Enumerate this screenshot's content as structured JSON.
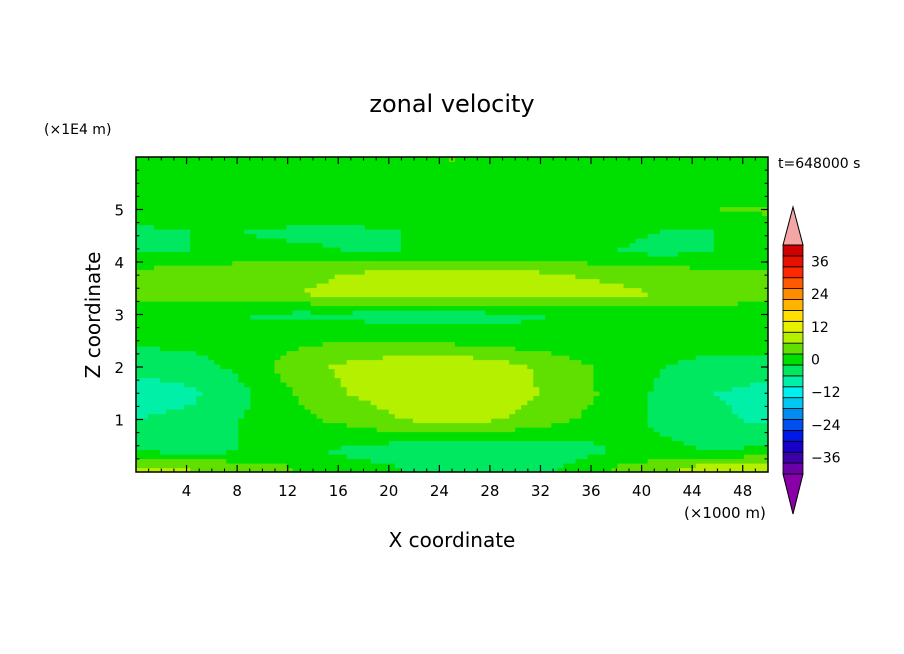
{
  "chart_data": {
    "type": "heatmap",
    "title": "zonal velocity",
    "xlabel": "X coordinate",
    "ylabel": "Z coordinate",
    "x_unit": "(×1000 m)",
    "y_unit": "(×1E4 m)",
    "time_label": "t=648000 s",
    "xlim": [
      0,
      50
    ],
    "ylim": [
      0,
      6
    ],
    "x_ticks": [
      4,
      8,
      12,
      16,
      20,
      24,
      28,
      32,
      36,
      40,
      44,
      48
    ],
    "y_ticks": [
      1,
      2,
      3,
      4,
      5
    ],
    "colorbar": {
      "range": [
        -42,
        42
      ],
      "step": 4,
      "tick_labels": [
        36,
        24,
        12,
        0,
        -12,
        -24,
        -36
      ],
      "colors": [
        "#6a00a8",
        "#3c00a8",
        "#1800c8",
        "#0018e8",
        "#0050f0",
        "#008cf0",
        "#00c8f0",
        "#00f0f0",
        "#00f0a8",
        "#00e860",
        "#00e000",
        "#60e000",
        "#b4f000",
        "#e6f000",
        "#ffe000",
        "#ffb400",
        "#ff8c00",
        "#ff5a00",
        "#ff2800",
        "#e81000",
        "#d00000"
      ],
      "low_extend_color": "#8a00a8",
      "high_extend_color": "#f4a6a6"
    },
    "z_levels": [
      {
        "z": 0.1,
        "u": [
          6,
          6,
          4,
          2,
          0,
          -2,
          -3,
          -3,
          -2,
          2,
          5,
          8,
          10
        ],
        "from_x": 0
      },
      {
        "z": 0.4,
        "u": [
          -2,
          -3,
          -2,
          0,
          -3,
          -5,
          -6,
          -6,
          -5,
          -2,
          -1,
          -2,
          -1
        ],
        "from_x": 0
      },
      {
        "z": 1.0,
        "u": [
          -6,
          -5,
          -2,
          1,
          3,
          6,
          7,
          6,
          3,
          0,
          -3,
          -5,
          -7
        ],
        "from_x": 0
      },
      {
        "z": 1.5,
        "u": [
          -8,
          -7,
          -3,
          2,
          6,
          8,
          9,
          8,
          5,
          1,
          -3,
          -6,
          -8
        ],
        "from_x": 0
      },
      {
        "z": 2.0,
        "u": [
          -5,
          -4,
          -1,
          4,
          7,
          9,
          10,
          8,
          4,
          1,
          -2,
          -3,
          -4
        ],
        "from_x": 0
      },
      {
        "z": 2.5,
        "u": [
          -1,
          -1,
          0,
          1,
          2,
          2,
          1,
          0,
          0,
          0,
          -1,
          -1,
          0
        ],
        "from_x": 0
      },
      {
        "z": 3.0,
        "u": [
          -1,
          -2,
          -2,
          -3,
          -3,
          -4,
          -4,
          -3,
          -2,
          -2,
          -1,
          -1,
          -2
        ],
        "from_x": 0
      },
      {
        "z": 3.4,
        "u": [
          4,
          5,
          5,
          6,
          7,
          8,
          9,
          9,
          8,
          7,
          6,
          5,
          5
        ],
        "from_x": 0
      },
      {
        "z": 3.8,
        "u": [
          3,
          4,
          5,
          5,
          6,
          7,
          8,
          7,
          6,
          5,
          4,
          3,
          3
        ],
        "from_x": 0
      },
      {
        "z": 4.2,
        "u": [
          -2,
          -2,
          -1,
          -1,
          -2,
          -2,
          -1,
          -1,
          -2,
          -2,
          -3,
          -2,
          -2
        ],
        "from_x": 0
      },
      {
        "z": 4.6,
        "u": [
          -3,
          -2,
          -2,
          -3,
          -3,
          -2,
          -2,
          -1,
          0,
          -1,
          -2,
          -2,
          -2
        ],
        "from_x": 0
      },
      {
        "z": 5.0,
        "u": [
          1,
          1,
          2,
          2,
          1,
          1,
          0,
          -1,
          -1,
          0,
          1,
          2,
          3
        ],
        "from_x": 0
      },
      {
        "z": 5.4,
        "u": [
          -2,
          -2,
          -1,
          0,
          1,
          2,
          1,
          0,
          1,
          2,
          1,
          0,
          -1
        ],
        "from_x": 0
      },
      {
        "z": 5.9,
        "u": [
          -1,
          -1,
          0,
          1,
          1,
          1,
          2,
          1,
          1,
          0,
          0,
          -1,
          -1
        ],
        "from_x": 0
      }
    ]
  }
}
